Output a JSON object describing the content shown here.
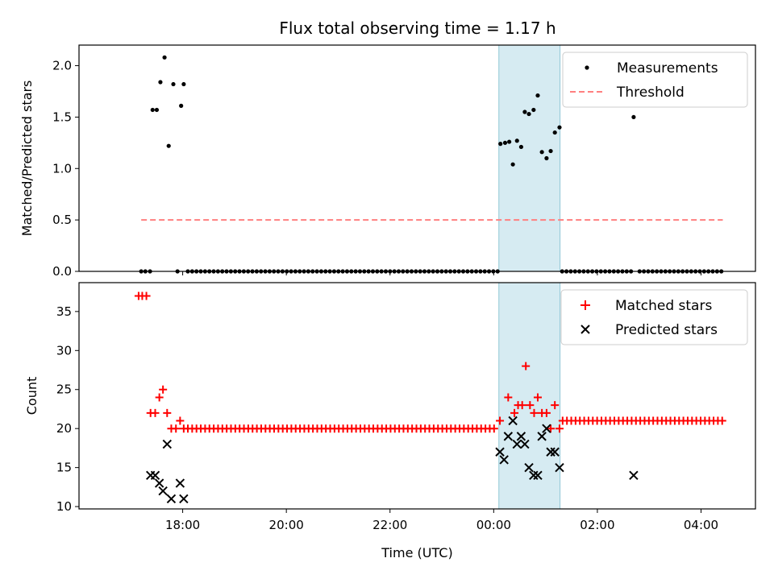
{
  "chart_data": [
    {
      "type": "scatter",
      "title": "Flux total observing time = 1.17 h",
      "xlabel": "",
      "ylabel": "Matched/Predicted stars",
      "x_unit": "hours (UTC), values past 24 are after midnight",
      "xlim": [
        16.0,
        29.05
      ],
      "ylim": [
        0.0,
        2.2
      ],
      "yticks": [
        "0.0",
        "0.5",
        "1.0",
        "1.5",
        "2.0"
      ],
      "grid": false,
      "legend": {
        "placement": "top-right",
        "entries": [
          "Measurements",
          "Threshold"
        ]
      },
      "highlight_span": [
        24.1,
        25.28
      ],
      "threshold": {
        "name": "Threshold",
        "x": [
          17.2,
          28.42
        ],
        "y": 0.5,
        "color": "#ff7f7f"
      },
      "series": [
        {
          "name": "Measurements",
          "color": "#000000",
          "points": [
            [
              17.2,
              0.0
            ],
            [
              17.28,
              0.0
            ],
            [
              17.37,
              0.0
            ],
            [
              17.42,
              1.57
            ],
            [
              17.5,
              1.57
            ],
            [
              17.57,
              1.84
            ],
            [
              17.65,
              2.08
            ],
            [
              17.73,
              1.22
            ],
            [
              17.82,
              1.82
            ],
            [
              17.9,
              0.0
            ],
            [
              17.97,
              1.61
            ],
            [
              18.02,
              1.82
            ],
            [
              24.13,
              1.24
            ],
            [
              24.22,
              1.25
            ],
            [
              24.3,
              1.26
            ],
            [
              24.37,
              1.04
            ],
            [
              24.45,
              1.27
            ],
            [
              24.53,
              1.21
            ],
            [
              24.6,
              1.55
            ],
            [
              24.68,
              1.53
            ],
            [
              24.77,
              1.57
            ],
            [
              24.85,
              1.71
            ],
            [
              24.93,
              1.16
            ],
            [
              25.02,
              1.1
            ],
            [
              25.1,
              1.17
            ],
            [
              25.18,
              1.35
            ],
            [
              25.27,
              1.4
            ],
            [
              26.7,
              1.5
            ]
          ],
          "zero_range": [
            18.1,
            28.45
          ],
          "zero_step": 0.083,
          "zero_gaps": [
            [
              24.08,
              25.28
            ],
            [
              26.65,
              26.75
            ]
          ]
        }
      ]
    },
    {
      "type": "scatter",
      "title": "",
      "xlabel": "Time (UTC)",
      "ylabel": "Count",
      "xlim": [
        16.0,
        29.05
      ],
      "ylim": [
        9.7,
        38.7
      ],
      "yticks": [
        "10",
        "15",
        "20",
        "25",
        "30",
        "35"
      ],
      "xticks": [
        {
          "value": 18,
          "label": "18:00"
        },
        {
          "value": 20,
          "label": "20:00"
        },
        {
          "value": 22,
          "label": "22:00"
        },
        {
          "value": 24,
          "label": "00:00"
        },
        {
          "value": 26,
          "label": "02:00"
        },
        {
          "value": 28,
          "label": "04:00"
        }
      ],
      "grid": false,
      "legend": {
        "placement": "top-right",
        "entries": [
          "Matched stars",
          "Predicted stars"
        ]
      },
      "highlight_span": [
        24.1,
        25.28
      ],
      "series": [
        {
          "name": "Matched stars",
          "marker": "plus",
          "color": "#ff0000",
          "points": [
            [
              17.15,
              37
            ],
            [
              17.22,
              37
            ],
            [
              17.3,
              37
            ],
            [
              17.38,
              22
            ],
            [
              17.47,
              22
            ],
            [
              17.55,
              24
            ],
            [
              17.62,
              25
            ],
            [
              17.7,
              22
            ],
            [
              17.78,
              20
            ],
            [
              17.87,
              20
            ],
            [
              17.95,
              21
            ],
            [
              18.02,
              20
            ],
            [
              24.12,
              21
            ],
            [
              24.28,
              24
            ],
            [
              24.4,
              22
            ],
            [
              24.47,
              23
            ],
            [
              24.55,
              23
            ],
            [
              24.62,
              28
            ],
            [
              24.7,
              23
            ],
            [
              24.78,
              22
            ],
            [
              24.85,
              24
            ],
            [
              24.93,
              22
            ],
            [
              25.02,
              22
            ],
            [
              25.1,
              20
            ],
            [
              25.18,
              23
            ],
            [
              25.27,
              20
            ]
          ],
          "constant_runs": [
            {
              "from": 18.1,
              "to": 24.05,
              "step": 0.0832,
              "value": 20
            },
            {
              "from": 25.33,
              "to": 28.42,
              "step": 0.0832,
              "value": 21
            }
          ]
        },
        {
          "name": "Predicted stars",
          "marker": "x",
          "color": "#000000",
          "points": [
            [
              17.38,
              14
            ],
            [
              17.47,
              14
            ],
            [
              17.55,
              13
            ],
            [
              17.62,
              12
            ],
            [
              17.7,
              18
            ],
            [
              17.78,
              11
            ],
            [
              17.95,
              13
            ],
            [
              18.02,
              11
            ],
            [
              24.12,
              17
            ],
            [
              24.2,
              16
            ],
            [
              24.28,
              19
            ],
            [
              24.37,
              21
            ],
            [
              24.45,
              18
            ],
            [
              24.53,
              19
            ],
            [
              24.6,
              18
            ],
            [
              24.68,
              15
            ],
            [
              24.77,
              14
            ],
            [
              24.85,
              14
            ],
            [
              24.93,
              19
            ],
            [
              25.02,
              20
            ],
            [
              25.1,
              17
            ],
            [
              25.18,
              17
            ],
            [
              25.27,
              15
            ],
            [
              26.7,
              14
            ]
          ]
        }
      ]
    }
  ]
}
